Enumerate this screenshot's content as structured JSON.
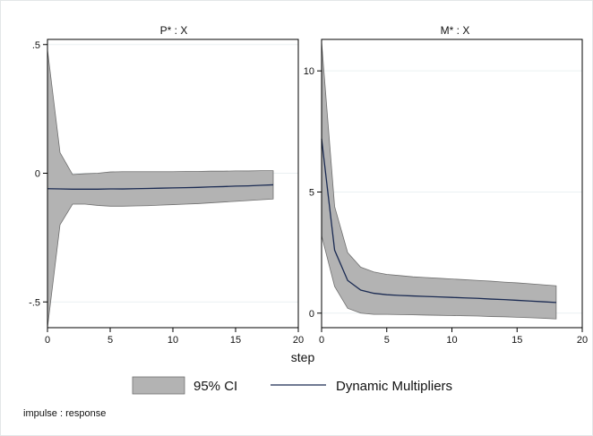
{
  "chart_data": {
    "type": "area",
    "xlabel": "step",
    "note": "impulse : response",
    "colors": {
      "ci_fill": "#b3b3b3",
      "line": "#1a2a52",
      "grid": "#eaf0f2",
      "plot_border": "#000000"
    },
    "legend": {
      "position": "bottom",
      "items": [
        {
          "label": "95% CI",
          "kind": "area"
        },
        {
          "label": "Dynamic Multipliers",
          "kind": "line"
        }
      ]
    },
    "panels": [
      {
        "title": "P* : X",
        "xlim": [
          0,
          20
        ],
        "ylim": [
          -0.6,
          0.52
        ],
        "xticks": [
          0,
          5,
          10,
          15,
          20
        ],
        "xtick_labels": [
          "0",
          "5",
          "10",
          "15",
          "20"
        ],
        "yticks": [
          -0.5,
          0,
          0.5
        ],
        "ytick_labels": [
          "-.5",
          "0",
          ".5"
        ],
        "grid": true,
        "series": [
          {
            "kind": "ci",
            "x": [
              0,
              1,
              2,
              3,
              4,
              5,
              6,
              7,
              8,
              9,
              10,
              11,
              12,
              13,
              14,
              15,
              16,
              17,
              18
            ],
            "upper": [
              0.48,
              0.08,
              -0.005,
              -0.002,
              0.0,
              0.005,
              0.006,
              0.006,
              0.006,
              0.006,
              0.006,
              0.007,
              0.007,
              0.008,
              0.008,
              0.009,
              0.009,
              0.01,
              0.01
            ],
            "lower": [
              -0.6,
              -0.2,
              -0.12,
              -0.12,
              -0.125,
              -0.128,
              -0.128,
              -0.127,
              -0.126,
              -0.124,
              -0.122,
              -0.12,
              -0.118,
              -0.115,
              -0.112,
              -0.109,
              -0.106,
              -0.103,
              -0.1
            ]
          },
          {
            "kind": "line",
            "x": [
              0,
              1,
              2,
              3,
              4,
              5,
              6,
              7,
              8,
              9,
              10,
              11,
              12,
              13,
              14,
              15,
              16,
              17,
              18
            ],
            "y": [
              -0.06,
              -0.061,
              -0.062,
              -0.062,
              -0.062,
              -0.061,
              -0.061,
              -0.06,
              -0.059,
              -0.058,
              -0.057,
              -0.056,
              -0.055,
              -0.053,
              -0.052,
              -0.05,
              -0.049,
              -0.047,
              -0.045
            ]
          }
        ]
      },
      {
        "title": "M* : X",
        "xlim": [
          0,
          20
        ],
        "ylim": [
          -0.6,
          11.3
        ],
        "xticks": [
          0,
          5,
          10,
          15,
          20
        ],
        "xtick_labels": [
          "0",
          "5",
          "10",
          "15",
          "20"
        ],
        "yticks": [
          0,
          5,
          10
        ],
        "ytick_labels": [
          "0",
          "5",
          "10"
        ],
        "grid": true,
        "series": [
          {
            "kind": "ci",
            "x": [
              0,
              1,
              2,
              3,
              4,
              5,
              6,
              7,
              8,
              9,
              10,
              11,
              12,
              13,
              14,
              15,
              16,
              17,
              18
            ],
            "upper": [
              11.2,
              4.4,
              2.5,
              1.9,
              1.7,
              1.6,
              1.55,
              1.5,
              1.47,
              1.44,
              1.41,
              1.38,
              1.35,
              1.32,
              1.28,
              1.25,
              1.21,
              1.17,
              1.13
            ],
            "lower": [
              3.2,
              1.1,
              0.2,
              0.0,
              -0.05,
              -0.05,
              -0.06,
              -0.07,
              -0.08,
              -0.09,
              -0.1,
              -0.11,
              -0.12,
              -0.14,
              -0.15,
              -0.17,
              -0.19,
              -0.21,
              -0.24
            ]
          },
          {
            "kind": "line",
            "x": [
              0,
              1,
              2,
              3,
              4,
              5,
              6,
              7,
              8,
              9,
              10,
              11,
              12,
              13,
              14,
              15,
              16,
              17,
              18
            ],
            "y": [
              7.2,
              2.6,
              1.35,
              0.95,
              0.82,
              0.76,
              0.73,
              0.71,
              0.69,
              0.67,
              0.65,
              0.63,
              0.61,
              0.58,
              0.56,
              0.53,
              0.5,
              0.47,
              0.44
            ]
          }
        ]
      }
    ]
  }
}
